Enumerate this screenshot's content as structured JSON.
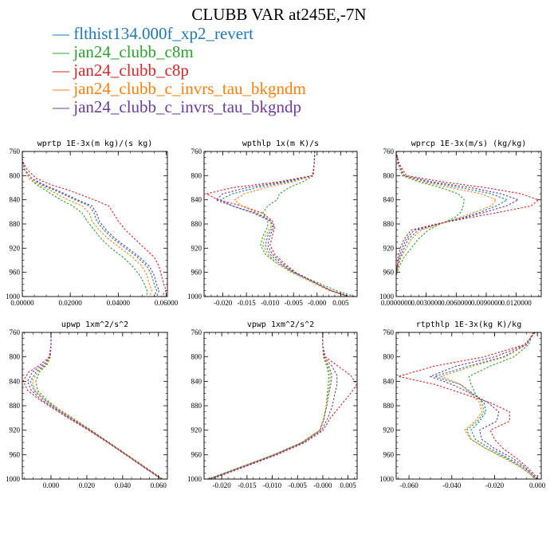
{
  "title": "CLUBB VAR at245E,-7N",
  "legend": [
    {
      "label": "flthist134.000f_xp2_revert",
      "color": "#1f77b4"
    },
    {
      "label": "jan24_clubb_c8m",
      "color": "#2ca02c"
    },
    {
      "label": "jan24_clubb_c8p",
      "color": "#d62728"
    },
    {
      "label": "jan24_clubb_c_invrs_tau_bkgndm",
      "color": "#ff7f0e"
    },
    {
      "label": "jan24_clubb_c_invrs_tau_bkgndp",
      "color": "#6a3d9a"
    }
  ],
  "chart_data": [
    {
      "type": "line",
      "title": "wprtp  1E-3x(m kg)/(s kg)",
      "xlim": [
        0,
        0.0605
      ],
      "ylim": [
        760,
        1000
      ],
      "y_inverted": true,
      "xticks": [
        0,
        0.02,
        0.04,
        0.06
      ],
      "xtick_labels": [
        "0.00000",
        "0.02000",
        "0.04000",
        "0.06000"
      ],
      "yticks": [
        760,
        800,
        840,
        880,
        920,
        960,
        1000
      ],
      "y": [
        760,
        775,
        790,
        805,
        815,
        825,
        840,
        850,
        862,
        875,
        890,
        905,
        920,
        935,
        950,
        965,
        980,
        990,
        1000
      ],
      "series": [
        {
          "name": "flthist134.000f_xp2_revert",
          "x": [
            0,
            0,
            0.001,
            0.004,
            0.008,
            0.014,
            0.022,
            0.028,
            0.03,
            0.031,
            0.034,
            0.038,
            0.043,
            0.048,
            0.052,
            0.054,
            0.055,
            0.056,
            0.055
          ]
        },
        {
          "name": "jan24_clubb_c8m",
          "x": [
            0,
            0,
            0.001,
            0.003,
            0.006,
            0.01,
            0.016,
            0.021,
            0.025,
            0.027,
            0.03,
            0.033,
            0.037,
            0.042,
            0.046,
            0.049,
            0.051,
            0.052,
            0.052
          ]
        },
        {
          "name": "jan24_clubb_c8p",
          "x": [
            0,
            0,
            0.002,
            0.006,
            0.012,
            0.02,
            0.03,
            0.036,
            0.038,
            0.04,
            0.043,
            0.047,
            0.051,
            0.055,
            0.057,
            0.058,
            0.059,
            0.06,
            0.058
          ]
        },
        {
          "name": "jan24_clubb_c_invrs_tau_bkgndm",
          "x": [
            0,
            0,
            0.001,
            0.003,
            0.007,
            0.012,
            0.019,
            0.025,
            0.028,
            0.029,
            0.032,
            0.036,
            0.041,
            0.046,
            0.05,
            0.052,
            0.053,
            0.054,
            0.053
          ]
        },
        {
          "name": "jan24_clubb_c_invrs_tau_bkgndp",
          "x": [
            0,
            0,
            0.001,
            0.004,
            0.009,
            0.015,
            0.023,
            0.029,
            0.031,
            0.032,
            0.035,
            0.039,
            0.044,
            0.049,
            0.053,
            0.055,
            0.056,
            0.057,
            0.056
          ]
        }
      ]
    },
    {
      "type": "line",
      "title": "wpthlp  1x(m K)/s",
      "xlim": [
        -0.024,
        0.0085
      ],
      "ylim": [
        760,
        1000
      ],
      "y_inverted": true,
      "xticks": [
        -0.02,
        -0.015,
        -0.01,
        -0.005,
        0,
        0.005
      ],
      "xtick_labels": [
        "-0.020",
        "-0.015",
        "-0.010",
        "-0.005",
        "-0.000",
        "0.005"
      ],
      "yticks": [
        760,
        800,
        840,
        880,
        920,
        960,
        1000
      ],
      "y": [
        760,
        780,
        800,
        810,
        820,
        830,
        840,
        850,
        862,
        875,
        885,
        900,
        915,
        930,
        945,
        960,
        975,
        990,
        1000
      ],
      "series": [
        {
          "name": "flthist134.000f_xp2_revert",
          "x": [
            -0.0005,
            -0.0006,
            -0.0009,
            -0.006,
            -0.013,
            -0.018,
            -0.0205,
            -0.018,
            -0.0135,
            -0.01,
            -0.0095,
            -0.0105,
            -0.011,
            -0.01,
            -0.008,
            -0.005,
            -0.001,
            0.003,
            0.0065
          ]
        },
        {
          "name": "jan24_clubb_c8m",
          "x": [
            -0.0005,
            -0.0006,
            -0.0008,
            -0.003,
            -0.006,
            -0.008,
            -0.0085,
            -0.0105,
            -0.0115,
            -0.0105,
            -0.0105,
            -0.0115,
            -0.012,
            -0.011,
            -0.0085,
            -0.005,
            -0.0005,
            0.004,
            0.008
          ]
        },
        {
          "name": "jan24_clubb_c8p",
          "x": [
            -0.0005,
            -0.0006,
            -0.001,
            -0.008,
            -0.018,
            -0.0235,
            -0.021,
            -0.016,
            -0.0115,
            -0.0095,
            -0.009,
            -0.0095,
            -0.01,
            -0.009,
            -0.007,
            -0.0045,
            -0.001,
            0.003,
            0.007
          ]
        },
        {
          "name": "jan24_clubb_c_invrs_tau_bkgndm",
          "x": [
            -0.0005,
            -0.0006,
            -0.0008,
            -0.005,
            -0.011,
            -0.0155,
            -0.0175,
            -0.016,
            -0.0125,
            -0.0098,
            -0.0098,
            -0.011,
            -0.0115,
            -0.0105,
            -0.0085,
            -0.0055,
            -0.0015,
            0.0025,
            0.0065
          ]
        },
        {
          "name": "jan24_clubb_c_invrs_tau_bkgndp",
          "x": [
            -0.0005,
            -0.0006,
            -0.0009,
            -0.007,
            -0.015,
            -0.02,
            -0.0215,
            -0.018,
            -0.013,
            -0.0098,
            -0.0092,
            -0.01,
            -0.0105,
            -0.0095,
            -0.0075,
            -0.0048,
            -0.001,
            0.0028,
            0.0068
          ]
        }
      ]
    },
    {
      "type": "line",
      "title": "wprcp  1E-3x(m/s) (kg/kg)",
      "xlim": [
        0,
        0.0145
      ],
      "ylim": [
        760,
        1000
      ],
      "y_inverted": true,
      "xticks": [
        0,
        0.003,
        0.006,
        0.009,
        0.012
      ],
      "xtick_labels": [
        "0.0000000",
        "0.0030000",
        "0.0060000",
        "0.0090000",
        "0.0120000"
      ],
      "yticks": [
        760,
        800,
        840,
        880,
        920,
        960,
        1000
      ],
      "y": [
        760,
        780,
        800,
        810,
        820,
        830,
        840,
        850,
        860,
        870,
        880,
        890,
        905,
        920,
        935,
        950,
        965
      ],
      "series": [
        {
          "name": "flthist134.000f_xp2_revert",
          "x": [
            0,
            0.0002,
            0.0008,
            0.003,
            0.0065,
            0.0095,
            0.0111,
            0.01,
            0.0085,
            0.0065,
            0.0042,
            0.0022,
            0.0012,
            0.0008,
            0.0004,
            0.0002,
            0
          ]
        },
        {
          "name": "jan24_clubb_c8m",
          "x": [
            0,
            0.0002,
            0.0006,
            0.0022,
            0.0045,
            0.0062,
            0.0068,
            0.0067,
            0.0065,
            0.0058,
            0.0044,
            0.0032,
            0.0022,
            0.0015,
            0.0008,
            0.0003,
            0
          ]
        },
        {
          "name": "jan24_clubb_c8p",
          "x": [
            0,
            0.0003,
            0.001,
            0.0045,
            0.009,
            0.0125,
            0.0142,
            0.0135,
            0.0105,
            0.0072,
            0.004,
            0.0015,
            0.0008,
            0.0004,
            0.0002,
            0.0001,
            0
          ]
        },
        {
          "name": "jan24_clubb_c_invrs_tau_bkgndm",
          "x": [
            0,
            0.0002,
            0.0007,
            0.0025,
            0.0055,
            0.0085,
            0.01,
            0.0095,
            0.008,
            0.0062,
            0.0043,
            0.0025,
            0.0015,
            0.001,
            0.0005,
            0.0002,
            0
          ]
        },
        {
          "name": "jan24_clubb_c_invrs_tau_bkgndp",
          "x": [
            0,
            0.0002,
            0.0008,
            0.0035,
            0.0075,
            0.0105,
            0.0122,
            0.011,
            0.009,
            0.0068,
            0.0042,
            0.0018,
            0.001,
            0.0006,
            0.0003,
            0.0001,
            0
          ]
        }
      ]
    },
    {
      "type": "line",
      "title": "upwp  1xm^2/s^2",
      "xlim": [
        -0.016,
        0.065
      ],
      "ylim": [
        760,
        1000
      ],
      "y_inverted": true,
      "xticks": [
        0,
        0.02,
        0.04,
        0.06
      ],
      "xtick_labels": [
        "0.000",
        "0.020",
        "0.040",
        "0.060"
      ],
      "yticks": [
        760,
        800,
        840,
        880,
        920,
        960,
        1000
      ],
      "y": [
        760,
        780,
        800,
        812,
        825,
        840,
        855,
        870,
        885,
        900,
        920,
        940,
        960,
        980,
        1000
      ],
      "series": [
        {
          "name": "flthist134.000f_xp2_revert",
          "x": [
            0,
            0,
            -0.0005,
            -0.003,
            -0.0085,
            -0.0115,
            -0.0095,
            -0.004,
            0.003,
            0.011,
            0.022,
            0.032,
            0.042,
            0.052,
            0.062
          ]
        },
        {
          "name": "jan24_clubb_c8m",
          "x": [
            0,
            0,
            -0.0003,
            -0.002,
            -0.0065,
            -0.0085,
            -0.0075,
            -0.0025,
            0.004,
            0.012,
            0.0225,
            0.0325,
            0.0425,
            0.0525,
            0.0625
          ]
        },
        {
          "name": "jan24_clubb_c8p",
          "x": [
            0,
            0,
            -0.001,
            -0.0055,
            -0.0125,
            -0.0155,
            -0.013,
            -0.0065,
            0.0015,
            0.0095,
            0.021,
            0.0315,
            0.0415,
            0.0515,
            0.0615
          ]
        },
        {
          "name": "jan24_clubb_c_invrs_tau_bkgndm",
          "x": [
            0,
            0,
            -0.0004,
            -0.0025,
            -0.0075,
            -0.0105,
            -0.0088,
            -0.0035,
            0.0035,
            0.0115,
            0.0222,
            0.0322,
            0.0422,
            0.0522,
            0.0622
          ]
        },
        {
          "name": "jan24_clubb_c_invrs_tau_bkgndp",
          "x": [
            0,
            0,
            -0.0006,
            -0.004,
            -0.0105,
            -0.013,
            -0.011,
            -0.0055,
            0.0022,
            0.0102,
            0.0215,
            0.0318,
            0.0418,
            0.0518,
            0.0618
          ]
        }
      ]
    },
    {
      "type": "line",
      "title": "vpwp  1xm^2/s^2",
      "xlim": [
        -0.0235,
        0.0068
      ],
      "ylim": [
        760,
        1000
      ],
      "y_inverted": true,
      "xticks": [
        -0.02,
        -0.015,
        -0.01,
        -0.005,
        0,
        0.005
      ],
      "xtick_labels": [
        "-0.020",
        "-0.015",
        "-0.010",
        "-0.005",
        "-0.000",
        "0.005"
      ],
      "yticks": [
        760,
        800,
        840,
        880,
        920,
        960,
        1000
      ],
      "y": [
        760,
        780,
        800,
        815,
        830,
        845,
        860,
        880,
        900,
        920,
        940,
        960,
        980,
        1000
      ],
      "series": [
        {
          "name": "flthist134.000f_xp2_revert",
          "x": [
            0,
            0,
            0.0002,
            0.0012,
            0.0018,
            0.0016,
            0.0012,
            0.0008,
            0.0003,
            -0.0005,
            -0.004,
            -0.0095,
            -0.016,
            -0.0225
          ]
        },
        {
          "name": "jan24_clubb_c8m",
          "x": [
            0,
            0,
            0.0001,
            0.0008,
            0.0012,
            0.0011,
            0.0009,
            0.0007,
            0.0002,
            -0.0006,
            -0.0042,
            -0.0097,
            -0.0162,
            -0.0228
          ]
        },
        {
          "name": "jan24_clubb_c8p",
          "x": [
            0,
            0,
            0.0005,
            0.003,
            0.0055,
            0.0067,
            0.0055,
            0.0035,
            0.0015,
            0.0001,
            -0.0035,
            -0.009,
            -0.0155,
            -0.022
          ]
        },
        {
          "name": "jan24_clubb_c_invrs_tau_bkgndm",
          "x": [
            0,
            0,
            0.0002,
            0.001,
            0.0015,
            0.0014,
            0.0011,
            0.0007,
            0.0002,
            -0.0006,
            -0.0041,
            -0.0096,
            -0.0161,
            -0.0226
          ]
        },
        {
          "name": "jan24_clubb_c_invrs_tau_bkgndp",
          "x": [
            0,
            0,
            0.0003,
            0.0018,
            0.0028,
            0.0028,
            0.0024,
            0.0019,
            0.001,
            -0.0002,
            -0.0038,
            -0.0093,
            -0.0158,
            -0.0223
          ]
        }
      ]
    },
    {
      "type": "line",
      "title": "rtpthlp  1E-3x(kg K)/kg",
      "xlim": [
        -0.066,
        0.0018
      ],
      "ylim": [
        760,
        1000
      ],
      "y_inverted": true,
      "xticks": [
        -0.06,
        -0.04,
        -0.02,
        0
      ],
      "xtick_labels": [
        "-0.060",
        "-0.040",
        "-0.020",
        "0.000"
      ],
      "yticks": [
        760,
        800,
        840,
        880,
        920,
        960,
        1000
      ],
      "y": [
        760,
        780,
        800,
        815,
        832,
        845,
        860,
        875,
        890,
        905,
        920,
        935,
        950,
        965,
        980,
        990,
        1000
      ],
      "series": [
        {
          "name": "flthist134.000f_xp2_revert",
          "x": [
            -0.002,
            -0.005,
            -0.016,
            -0.032,
            -0.048,
            -0.036,
            -0.03,
            -0.025,
            -0.024,
            -0.027,
            -0.031,
            -0.029,
            -0.022,
            -0.014,
            -0.007,
            -0.003,
            -0.0005
          ]
        },
        {
          "name": "jan24_clubb_c8m",
          "x": [
            -0.002,
            -0.004,
            -0.011,
            -0.022,
            -0.032,
            -0.031,
            -0.029,
            -0.026,
            -0.025,
            -0.028,
            -0.033,
            -0.031,
            -0.024,
            -0.015,
            -0.008,
            -0.004,
            -0.0008
          ]
        },
        {
          "name": "jan24_clubb_c8p",
          "x": [
            -0.001,
            -0.006,
            -0.025,
            -0.048,
            -0.065,
            -0.048,
            -0.035,
            -0.022,
            -0.013,
            -0.013,
            -0.022,
            -0.02,
            -0.016,
            -0.01,
            -0.005,
            -0.002,
            0.0002
          ]
        },
        {
          "name": "jan24_clubb_c_invrs_tau_bkgndm",
          "x": [
            -0.002,
            -0.005,
            -0.015,
            -0.03,
            -0.045,
            -0.036,
            -0.031,
            -0.027,
            -0.026,
            -0.029,
            -0.034,
            -0.031,
            -0.024,
            -0.016,
            -0.008,
            -0.004,
            -0.001
          ]
        },
        {
          "name": "jan24_clubb_c_invrs_tau_bkgndp",
          "x": [
            -0.0015,
            -0.005,
            -0.02,
            -0.038,
            -0.05,
            -0.04,
            -0.031,
            -0.023,
            -0.018,
            -0.019,
            -0.027,
            -0.026,
            -0.02,
            -0.012,
            -0.006,
            -0.003,
            -0.0002
          ]
        }
      ]
    }
  ]
}
